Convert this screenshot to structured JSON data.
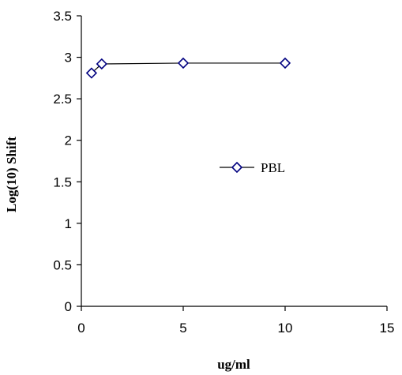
{
  "chart_data": {
    "type": "scatter",
    "xlabel": "ug/ml",
    "ylabel": "Log(10) Shift",
    "xlim": [
      0,
      15
    ],
    "ylim": [
      0,
      3.5
    ],
    "xticks": [
      0,
      5,
      10,
      15
    ],
    "yticks": [
      0,
      0.5,
      1,
      1.5,
      2,
      2.5,
      3,
      3.5
    ],
    "xtick_labels": [
      "0",
      "5",
      "10",
      "15"
    ],
    "ytick_labels": [
      "0",
      "0.5",
      "1",
      "1.5",
      "2",
      "2.5",
      "3",
      "3.5"
    ],
    "grid": false,
    "legend_position": "center-right",
    "series": [
      {
        "name": "PBL",
        "marker": "diamond",
        "line": true,
        "color": "#000080",
        "x": [
          0.5,
          1,
          5,
          10
        ],
        "y": [
          2.81,
          2.92,
          2.93,
          2.93
        ]
      }
    ]
  }
}
